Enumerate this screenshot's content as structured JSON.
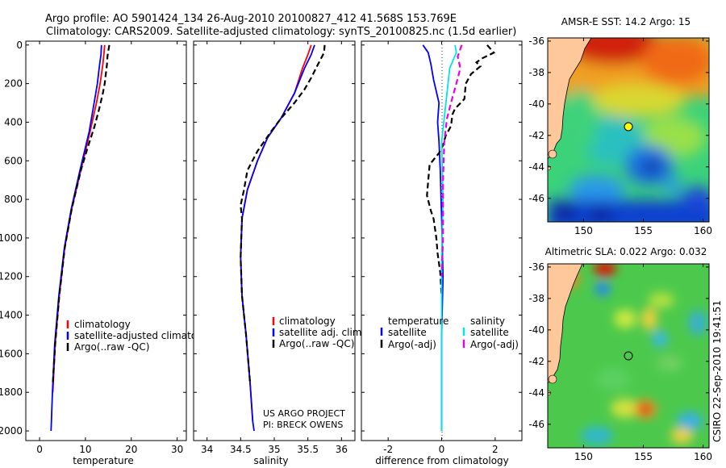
{
  "header": {
    "line1": "Argo profile: AO 5901424_134 26-Aug-2010 20100827_412 41.568S 153.769E",
    "line2": "Climatology: CARS2009. Satellite-adjusted climatology: synTS_20100825.nc (1.5d earlier)"
  },
  "colors": {
    "climatology": "#ff0000",
    "satellite": "#0000ff",
    "argo": "#000000",
    "salinity_sat": "#00e5e5",
    "salinity_argo": "#e600e6",
    "land": "#ffc89a"
  },
  "chart_data": [
    {
      "type": "line",
      "name": "temperature-profile",
      "xlabel": "temperature",
      "ylabel": "",
      "xlim": [
        -3,
        32
      ],
      "ylim": [
        2050,
        0
      ],
      "xticks": [
        "0",
        "10",
        "20",
        "30"
      ],
      "xtick_values": [
        0,
        10,
        20,
        30
      ],
      "yticks": [
        "0",
        "200",
        "400",
        "600",
        "800",
        "1000",
        "1200",
        "1400",
        "1600",
        "1800",
        "2000"
      ],
      "ytick_values": [
        0,
        200,
        400,
        600,
        800,
        1000,
        1200,
        1400,
        1600,
        1800,
        2000
      ],
      "legend": [
        "climatology",
        "satellite-adjusted climatology",
        "Argo(..raw -QC)"
      ],
      "series": [
        {
          "name": "climatology",
          "color": "#ff0000",
          "style": "solid",
          "points": [
            [
              14.2,
              0
            ],
            [
              14.0,
              50
            ],
            [
              13.8,
              100
            ],
            [
              13.2,
              200
            ],
            [
              12.4,
              300
            ],
            [
              11.0,
              450
            ],
            [
              9.0,
              650
            ],
            [
              7.0,
              850
            ],
            [
              5.5,
              1050
            ],
            [
              4.3,
              1300
            ],
            [
              3.4,
              1550
            ],
            [
              2.9,
              1800
            ]
          ]
        },
        {
          "name": "satellite-adjusted climatology",
          "color": "#0000ff",
          "style": "solid",
          "points": [
            [
              13.5,
              0
            ],
            [
              13.4,
              50
            ],
            [
              13.1,
              100
            ],
            [
              12.6,
              200
            ],
            [
              11.9,
              300
            ],
            [
              10.8,
              450
            ],
            [
              8.8,
              650
            ],
            [
              6.9,
              850
            ],
            [
              5.4,
              1050
            ],
            [
              4.2,
              1300
            ],
            [
              3.3,
              1550
            ],
            [
              2.8,
              1800
            ],
            [
              2.5,
              2000
            ]
          ]
        },
        {
          "name": "Argo(..raw -QC)",
          "color": "#000000",
          "style": "dashed",
          "points": [
            [
              15.2,
              0
            ],
            [
              15.0,
              30
            ],
            [
              14.8,
              60
            ],
            [
              14.7,
              100
            ],
            [
              14.2,
              200
            ],
            [
              13.8,
              250
            ],
            [
              13.0,
              330
            ],
            [
              12.0,
              420
            ],
            [
              10.5,
              530
            ],
            [
              9.0,
              650
            ],
            [
              7.0,
              850
            ],
            [
              5.5,
              1050
            ],
            [
              4.3,
              1300
            ],
            [
              3.4,
              1550
            ],
            [
              2.9,
              1750
            ]
          ]
        }
      ]
    },
    {
      "type": "line",
      "name": "salinity-profile",
      "xlabel": "salinity",
      "ylabel": "",
      "xlim": [
        33.8,
        36.2
      ],
      "ylim": [
        2050,
        0
      ],
      "xticks": [
        "34",
        "34.5",
        "35",
        "35.5",
        "36"
      ],
      "xtick_values": [
        34,
        34.5,
        35,
        35.5,
        36
      ],
      "legend": [
        "climatology",
        "satellite adj. clim.",
        "Argo(..raw -QC)"
      ],
      "annotation": [
        "US ARGO PROJECT",
        "PI: BRECK OWENS"
      ],
      "series": [
        {
          "name": "climatology",
          "color": "#ff0000",
          "style": "solid",
          "points": [
            [
              35.55,
              0
            ],
            [
              35.5,
              50
            ],
            [
              35.42,
              120
            ],
            [
              35.3,
              250
            ],
            [
              35.1,
              380
            ],
            [
              34.9,
              480
            ],
            [
              34.75,
              600
            ],
            [
              34.6,
              750
            ],
            [
              34.52,
              900
            ],
            [
              34.5,
              1100
            ],
            [
              34.52,
              1300
            ],
            [
              34.58,
              1500
            ],
            [
              34.64,
              1750
            ],
            [
              34.68,
              1950
            ]
          ]
        },
        {
          "name": "satellite adj. clim.",
          "color": "#0000ff",
          "style": "solid",
          "points": [
            [
              35.6,
              0
            ],
            [
              35.55,
              50
            ],
            [
              35.45,
              120
            ],
            [
              35.3,
              250
            ],
            [
              35.1,
              380
            ],
            [
              34.9,
              480
            ],
            [
              34.75,
              600
            ],
            [
              34.6,
              750
            ],
            [
              34.52,
              900
            ],
            [
              34.5,
              1100
            ],
            [
              34.52,
              1300
            ],
            [
              34.58,
              1500
            ],
            [
              34.64,
              1750
            ],
            [
              34.68,
              1950
            ],
            [
              34.7,
              2000
            ]
          ]
        },
        {
          "name": "Argo(..raw -QC)",
          "color": "#000000",
          "style": "dashed",
          "points": [
            [
              35.75,
              0
            ],
            [
              35.74,
              40
            ],
            [
              35.65,
              100
            ],
            [
              35.55,
              170
            ],
            [
              35.45,
              230
            ],
            [
              35.3,
              300
            ],
            [
              35.1,
              380
            ],
            [
              34.95,
              450
            ],
            [
              34.75,
              550
            ],
            [
              34.6,
              650
            ],
            [
              34.55,
              750
            ],
            [
              34.5,
              830
            ],
            [
              34.52,
              900
            ],
            [
              34.5,
              1100
            ],
            [
              34.52,
              1300
            ],
            [
              34.58,
              1500
            ],
            [
              34.64,
              1750
            ]
          ]
        }
      ]
    },
    {
      "type": "line",
      "name": "difference-profile",
      "xlabel": "difference from climatology",
      "ylabel": "",
      "xlim": [
        -3,
        3
      ],
      "ylim": [
        2050,
        0
      ],
      "xticks": [
        "-2",
        "0",
        "2"
      ],
      "xtick_values": [
        -2,
        0,
        2
      ],
      "legend_groups": [
        {
          "title": "temperature",
          "items": [
            "satellite",
            "Argo(-adj)"
          ]
        },
        {
          "title": "salinity",
          "items": [
            "satellite",
            "Argo(-adj)"
          ]
        }
      ],
      "series": [
        {
          "name": "temperature satellite",
          "color": "#0000ff",
          "style": "solid",
          "points": [
            [
              -0.7,
              0
            ],
            [
              -0.5,
              40
            ],
            [
              -0.4,
              100
            ],
            [
              -0.3,
              180
            ],
            [
              -0.1,
              300
            ],
            [
              -0.15,
              400
            ],
            [
              -0.1,
              500
            ],
            [
              -0.05,
              650
            ],
            [
              0.0,
              900
            ],
            [
              0.05,
              1200
            ],
            [
              0.0,
              1500
            ],
            [
              0.0,
              1800
            ],
            [
              0.0,
              2000
            ]
          ]
        },
        {
          "name": "temperature Argo(-adj)",
          "color": "#000000",
          "style": "dashed",
          "points": [
            [
              1.7,
              0
            ],
            [
              1.95,
              40
            ],
            [
              1.5,
              70
            ],
            [
              1.3,
              90
            ],
            [
              1.45,
              110
            ],
            [
              1.1,
              150
            ],
            [
              0.9,
              200
            ],
            [
              0.85,
              280
            ],
            [
              0.5,
              330
            ],
            [
              0.4,
              360
            ],
            [
              0.35,
              420
            ],
            [
              0.15,
              470
            ],
            [
              0.05,
              520
            ],
            [
              -0.1,
              560
            ],
            [
              -0.45,
              620
            ],
            [
              -0.5,
              700
            ],
            [
              -0.55,
              780
            ],
            [
              -0.4,
              860
            ],
            [
              -0.3,
              900
            ],
            [
              -0.2,
              1000
            ],
            [
              -0.15,
              1080
            ],
            [
              -0.05,
              1180
            ],
            [
              0.0,
              1300
            ]
          ]
        },
        {
          "name": "salinity satellite",
          "color": "#00e5e5",
          "style": "solid",
          "points": [
            [
              0.5,
              0
            ],
            [
              0.55,
              40
            ],
            [
              0.3,
              120
            ],
            [
              0.2,
              250
            ],
            [
              0.0,
              500
            ],
            [
              0.05,
              800
            ],
            [
              0.0,
              1100
            ],
            [
              0.0,
              1400
            ],
            [
              0.0,
              1700
            ],
            [
              0.0,
              2000
            ]
          ]
        },
        {
          "name": "salinity Argo(-adj)",
          "color": "#e600e6",
          "style": "dashed",
          "points": [
            [
              0.75,
              0
            ],
            [
              0.6,
              60
            ],
            [
              0.7,
              120
            ],
            [
              0.55,
              200
            ],
            [
              0.45,
              250
            ],
            [
              0.35,
              300
            ],
            [
              0.2,
              380
            ],
            [
              0.1,
              500
            ],
            [
              0.05,
              700
            ],
            [
              0.05,
              1000
            ],
            [
              0.0,
              1200
            ]
          ]
        }
      ]
    },
    {
      "type": "heatmap",
      "name": "sst-map",
      "title": "AMSR-E SST: 14.2 Argo: 15",
      "xlim": [
        147,
        160.5
      ],
      "ylim": [
        -47.5,
        -35.8
      ],
      "xticks": [
        "150",
        "155",
        "160"
      ],
      "xtick_values": [
        150,
        155,
        160
      ],
      "yticks": [
        "-36",
        "-38",
        "-40",
        "-42",
        "-44",
        "-46"
      ],
      "ytick_values": [
        -36,
        -38,
        -40,
        -42,
        -44,
        -46
      ],
      "argo_position": [
        153.77,
        -41.57
      ]
    },
    {
      "type": "heatmap",
      "name": "sla-map",
      "title": "Altimetric SLA: 0.022 Argo: 0.032",
      "xlim": [
        147,
        160.5
      ],
      "ylim": [
        -47.5,
        -35.8
      ],
      "xticks": [
        "150",
        "155",
        "160"
      ],
      "xtick_values": [
        150,
        155,
        160
      ],
      "yticks": [
        "-36",
        "-38",
        "-40",
        "-42",
        "-44",
        "-46"
      ],
      "ytick_values": [
        -36,
        -38,
        -40,
        -42,
        -44,
        -46
      ],
      "argo_position": [
        153.77,
        -41.57
      ]
    }
  ],
  "footer": {
    "credit": "CSIRO 22-Sep-2010 19:41:51"
  }
}
